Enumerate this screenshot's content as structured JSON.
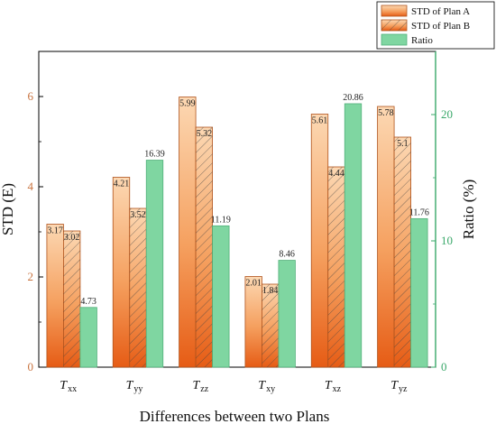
{
  "chart_data": {
    "type": "bar",
    "xlabel": "Differences between two Plans",
    "ylabel_left": "STD (E)",
    "ylabel_right": "Ratio (%)",
    "ylim_left": [
      0,
      7
    ],
    "ylim_right": [
      0,
      25
    ],
    "yticks_left": [
      0,
      2,
      4,
      6
    ],
    "yticks_right": [
      0,
      10,
      20
    ],
    "categories": [
      {
        "main": "T",
        "sub": "xx"
      },
      {
        "main": "T",
        "sub": "yy"
      },
      {
        "main": "T",
        "sub": "zz"
      },
      {
        "main": "T",
        "sub": "xy"
      },
      {
        "main": "T",
        "sub": "xz"
      },
      {
        "main": "T",
        "sub": "yz"
      }
    ],
    "series": [
      {
        "name": "STD of Plan A",
        "axis": "left",
        "values": [
          3.17,
          4.21,
          5.99,
          2.01,
          5.61,
          5.78
        ],
        "labels": [
          "3.17",
          "4.21",
          "5.99",
          "2.01",
          "5.61",
          "5.78"
        ]
      },
      {
        "name": "STD of Plan B",
        "axis": "left",
        "values": [
          3.02,
          3.52,
          5.32,
          1.84,
          4.44,
          5.1
        ],
        "labels": [
          "3.02",
          "3.52",
          "5.32",
          "1.84",
          "4.44",
          "5.1"
        ]
      },
      {
        "name": "Ratio",
        "axis": "right",
        "values": [
          4.73,
          16.39,
          11.19,
          8.46,
          20.86,
          11.76
        ],
        "labels": [
          "4.73",
          "16.39",
          "11.19",
          "8.46",
          "20.86",
          "11.76"
        ]
      }
    ],
    "legend_position": "top-right",
    "grid": false
  },
  "colors": {
    "left_axis": "#c8733f",
    "right_axis": "#3aa86a",
    "plan_a_top": "#fbd5ae",
    "plan_a_bottom": "#e8621c",
    "plan_b_top": "#fbd5ae",
    "plan_b_bottom": "#e8621c",
    "ratio_fill": "#7fd6a1",
    "ratio_stroke": "#52b07a"
  }
}
